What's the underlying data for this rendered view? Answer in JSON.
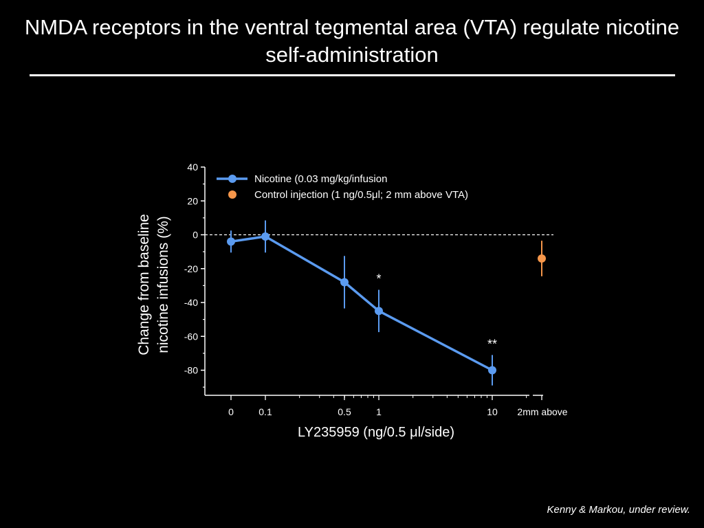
{
  "slide": {
    "title": "NMDA receptors in the ventral tegmental area (VTA) regulate nicotine self-administration",
    "citation": "Kenny & Markou, under review."
  },
  "chart_data": {
    "type": "line",
    "xlabel": "LY235959 (ng/0.5  μl/side)",
    "ylabel_lines": [
      "Change from baseline",
      "nicotine infusions (%)"
    ],
    "ylim": [
      -92,
      40
    ],
    "yticks": [
      40,
      20,
      0,
      -20,
      -40,
      -60,
      -80
    ],
    "x_scale": "log",
    "x_tick_labels": [
      "0",
      "0.1",
      "0.5",
      "1",
      "10",
      "2mm above"
    ],
    "reference_line": {
      "y": 0,
      "style": "dashed"
    },
    "colors": {
      "nicotine": "#5b9bf0",
      "control": "#f5964a"
    },
    "legend": {
      "placement": "top-left"
    },
    "series": [
      {
        "name": "Nicotine (0.03 mg/kg/infusion",
        "color": "#5b9bf0",
        "marker": "circle-line",
        "points": [
          {
            "x": "0",
            "y": -4,
            "err": 6.5
          },
          {
            "x": "0.1",
            "y": -1,
            "err": 9.5
          },
          {
            "x": "0.5",
            "y": -28,
            "err": 15.5
          },
          {
            "x": "1",
            "y": -45,
            "err": 12.5,
            "sig": "*"
          },
          {
            "x": "10",
            "y": -80,
            "err": 9,
            "sig": "**"
          }
        ]
      },
      {
        "name": "Control injection (1 ng/0.5μl; 2 mm above VTA)",
        "color": "#f5964a",
        "marker": "circle",
        "points": [
          {
            "x": "2mm above",
            "y": -14,
            "err": 10.5
          }
        ]
      }
    ]
  }
}
